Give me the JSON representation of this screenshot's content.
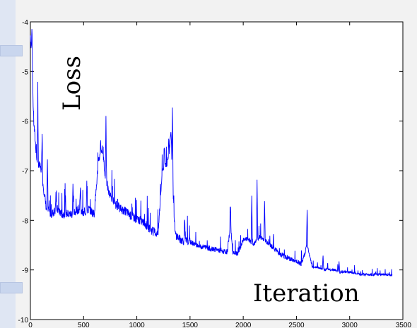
{
  "chart_data": {
    "type": "line",
    "ylabel": "Loss",
    "xlabel": "Iteration",
    "xlim": [
      0,
      3500
    ],
    "ylim": [
      -10,
      -4
    ],
    "xticks": [
      0,
      500,
      1000,
      1500,
      2000,
      2500,
      3000,
      3500
    ],
    "yticks": [
      -4,
      -5,
      -6,
      -7,
      -8,
      -9,
      -10
    ],
    "grid": false,
    "line_color": "#0000ff",
    "series": [
      {
        "x": [
          0,
          10,
          30,
          60,
          100,
          150,
          200,
          250,
          300,
          350,
          400,
          450,
          500,
          550,
          600,
          640,
          680,
          700,
          740,
          800,
          850,
          900,
          950,
          1000,
          1050,
          1100,
          1150,
          1200,
          1240,
          1270,
          1300,
          1320,
          1340,
          1360,
          1400,
          1450,
          1500,
          1550,
          1600,
          1650,
          1700,
          1750,
          1800,
          1850,
          1880,
          1900,
          1950,
          2000,
          2050,
          2100,
          2150,
          2200,
          2250,
          2300,
          2350,
          2400,
          2450,
          2500,
          2550,
          2600,
          2650,
          2700,
          2750,
          2800,
          2850,
          2900,
          2950,
          3000,
          3100,
          3200,
          3300,
          3400
        ],
        "y": [
          -4.3,
          -4.6,
          -6.0,
          -6.8,
          -7.0,
          -7.8,
          -7.9,
          -7.8,
          -7.9,
          -7.9,
          -7.9,
          -7.8,
          -7.9,
          -7.8,
          -7.9,
          -6.8,
          -6.6,
          -7.1,
          -7.5,
          -7.7,
          -7.8,
          -7.85,
          -7.95,
          -8.0,
          -8.05,
          -8.15,
          -8.25,
          -8.3,
          -7.0,
          -6.9,
          -6.8,
          -6.2,
          -7.5,
          -8.3,
          -8.4,
          -8.45,
          -8.45,
          -8.5,
          -8.55,
          -8.55,
          -8.6,
          -8.6,
          -8.65,
          -8.65,
          -8.1,
          -8.65,
          -8.7,
          -8.4,
          -8.4,
          -8.5,
          -8.35,
          -8.4,
          -8.5,
          -8.6,
          -8.7,
          -8.75,
          -8.8,
          -8.85,
          -8.9,
          -8.5,
          -8.95,
          -8.95,
          -9.0,
          -9.0,
          -9.0,
          -9.05,
          -9.05,
          -9.05,
          -9.1,
          -9.1,
          -9.1,
          -9.12
        ]
      }
    ],
    "spikes": [
      {
        "x": 15,
        "y": -4.1
      },
      {
        "x": 70,
        "y": -5.8
      },
      {
        "x": 110,
        "y": -6.2
      },
      {
        "x": 160,
        "y": -6.8
      },
      {
        "x": 240,
        "y": -7.5
      },
      {
        "x": 330,
        "y": -7.6
      },
      {
        "x": 400,
        "y": -7.3
      },
      {
        "x": 470,
        "y": -7.3
      },
      {
        "x": 530,
        "y": -7.2
      },
      {
        "x": 660,
        "y": -6.4
      },
      {
        "x": 710,
        "y": -5.9
      },
      {
        "x": 770,
        "y": -7.3
      },
      {
        "x": 1260,
        "y": -6.6
      },
      {
        "x": 1300,
        "y": -6.4
      },
      {
        "x": 1335,
        "y": -5.65
      },
      {
        "x": 1450,
        "y": -8.0
      },
      {
        "x": 1880,
        "y": -7.7
      },
      {
        "x": 2080,
        "y": -7.5
      },
      {
        "x": 2130,
        "y": -7.2
      },
      {
        "x": 2200,
        "y": -7.6
      },
      {
        "x": 2600,
        "y": -7.8
      },
      {
        "x": 2750,
        "y": -8.7
      },
      {
        "x": 2900,
        "y": -8.85
      }
    ]
  }
}
